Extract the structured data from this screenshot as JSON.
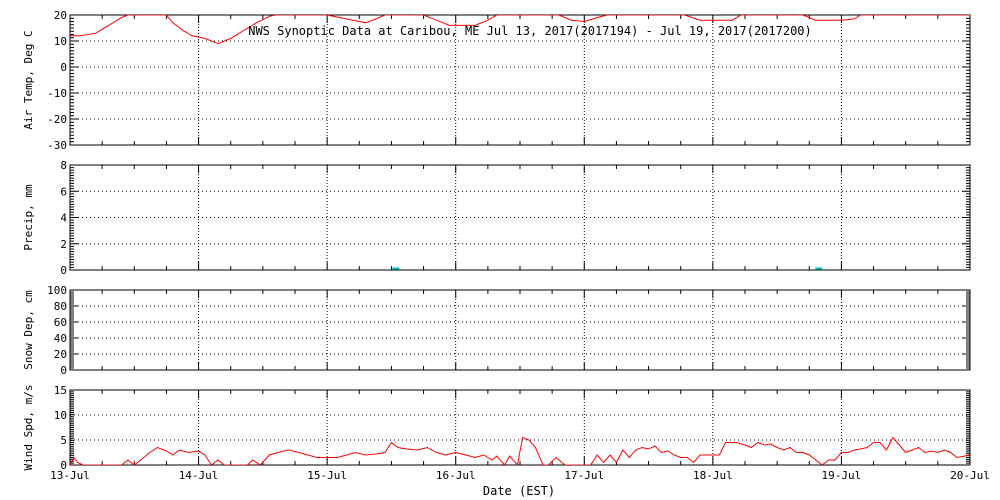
{
  "chart_data": {
    "title": "NWS Synoptic Data at Caribou, ME   Jul 13, 2017(2017194) - Jul 19, 2017(2017200)",
    "xlabel": "Date (EST)",
    "type": "line",
    "x_ticks": [
      "13-Jul",
      "14-Jul",
      "15-Jul",
      "16-Jul",
      "17-Jul",
      "18-Jul",
      "19-Jul",
      "20-Jul"
    ],
    "x_range": [
      0,
      7
    ],
    "grid": true,
    "colors": {
      "series": "#ff0000",
      "precip": "#00c8c8",
      "grid": "#000000"
    },
    "panels": [
      {
        "key": "air_temp",
        "type": "line",
        "ylabel": "Air Temp, Deg C",
        "ylim": [
          -30,
          20
        ],
        "y_ticks": [
          20,
          10,
          0,
          -10,
          -20,
          -30
        ],
        "series": [
          {
            "values": [
              [
                0,
                12
              ],
              [
                0.08,
                12
              ],
              [
                0.2,
                13
              ],
              [
                0.3,
                16
              ],
              [
                0.4,
                19
              ],
              [
                0.45,
                20
              ],
              [
                0.75,
                20
              ],
              [
                0.8,
                17
              ],
              [
                0.88,
                14
              ],
              [
                0.95,
                12
              ],
              [
                1.05,
                11
              ],
              [
                1.15,
                9
              ],
              [
                1.25,
                11
              ],
              [
                1.35,
                14
              ],
              [
                1.45,
                17
              ],
              [
                1.55,
                19.5
              ],
              [
                1.6,
                20
              ],
              [
                2.0,
                20
              ],
              [
                2.1,
                19
              ],
              [
                2.2,
                18
              ],
              [
                2.3,
                17
              ],
              [
                2.38,
                18.5
              ],
              [
                2.45,
                20
              ],
              [
                2.75,
                20
              ],
              [
                2.85,
                18
              ],
              [
                2.95,
                16
              ],
              [
                3.05,
                16
              ],
              [
                3.15,
                16
              ],
              [
                3.25,
                18
              ],
              [
                3.32,
                20
              ],
              [
                3.8,
                20
              ],
              [
                3.9,
                18
              ],
              [
                4.0,
                17.5
              ],
              [
                4.1,
                19
              ],
              [
                4.18,
                20
              ],
              [
                4.78,
                20
              ],
              [
                4.9,
                18
              ],
              [
                5.0,
                18
              ],
              [
                5.15,
                18
              ],
              [
                5.22,
                20
              ],
              [
                5.7,
                20
              ],
              [
                5.8,
                18
              ],
              [
                5.9,
                18
              ],
              [
                6.0,
                18
              ],
              [
                6.1,
                18.5
              ],
              [
                6.15,
                20
              ],
              [
                7,
                20
              ]
            ]
          }
        ]
      },
      {
        "key": "precip",
        "type": "bar",
        "ylabel": "Precip, mm",
        "ylim": [
          0,
          8
        ],
        "y_ticks": [
          8,
          6,
          4,
          2,
          0
        ],
        "series": [
          {
            "values": [
              [
                2.53,
                0.12
              ],
              [
                5.82,
                0.12
              ]
            ]
          }
        ]
      },
      {
        "key": "snow_depth",
        "type": "line",
        "ylabel": "Snow Dep, cm",
        "ylim": [
          0,
          100
        ],
        "y_ticks": [
          100,
          80,
          60,
          40,
          20,
          0
        ],
        "series": []
      },
      {
        "key": "wind_speed",
        "type": "line",
        "ylabel": "Wind Spd, m/s",
        "ylim": [
          0,
          15
        ],
        "y_ticks": [
          15,
          10,
          5,
          0
        ],
        "series": [
          {
            "values": [
              [
                0,
                0
              ],
              [
                0.03,
                1.5
              ],
              [
                0.06,
                0.5
              ],
              [
                0.1,
                0
              ],
              [
                0.4,
                0
              ],
              [
                0.45,
                1
              ],
              [
                0.5,
                0
              ],
              [
                0.55,
                1
              ],
              [
                0.62,
                2.5
              ],
              [
                0.68,
                3.5
              ],
              [
                0.75,
                2.8
              ],
              [
                0.8,
                2
              ],
              [
                0.85,
                3
              ],
              [
                0.92,
                2.5
              ],
              [
                1.0,
                2.8
              ],
              [
                1.05,
                2
              ],
              [
                1.1,
                0
              ],
              [
                1.15,
                1
              ],
              [
                1.2,
                0
              ],
              [
                1.38,
                0
              ],
              [
                1.42,
                1
              ],
              [
                1.48,
                0
              ],
              [
                1.55,
                2
              ],
              [
                1.62,
                2.5
              ],
              [
                1.7,
                3
              ],
              [
                1.78,
                2.5
              ],
              [
                1.85,
                2
              ],
              [
                1.92,
                1.5
              ],
              [
                2.0,
                1.5
              ],
              [
                2.08,
                1.5
              ],
              [
                2.15,
                2
              ],
              [
                2.22,
                2.5
              ],
              [
                2.3,
                2
              ],
              [
                2.38,
                2.2
              ],
              [
                2.45,
                2.5
              ],
              [
                2.5,
                4.5
              ],
              [
                2.55,
                3.5
              ],
              [
                2.62,
                3.2
              ],
              [
                2.7,
                3
              ],
              [
                2.78,
                3.5
              ],
              [
                2.85,
                2.5
              ],
              [
                2.92,
                2
              ],
              [
                3.0,
                2.5
              ],
              [
                3.08,
                2
              ],
              [
                3.15,
                1.5
              ],
              [
                3.22,
                2
              ],
              [
                3.28,
                1
              ],
              [
                3.32,
                1.8
              ],
              [
                3.38,
                0
              ],
              [
                3.42,
                1.8
              ],
              [
                3.48,
                0
              ],
              [
                3.52,
                5.5
              ],
              [
                3.57,
                5
              ],
              [
                3.62,
                3.5
              ],
              [
                3.68,
                0
              ],
              [
                3.72,
                0
              ],
              [
                3.78,
                1.5
              ],
              [
                3.85,
                0
              ],
              [
                4.05,
                0
              ],
              [
                4.1,
                2
              ],
              [
                4.15,
                0.5
              ],
              [
                4.2,
                2
              ],
              [
                4.25,
                0.5
              ],
              [
                4.3,
                3
              ],
              [
                4.35,
                1.5
              ],
              [
                4.4,
                3
              ],
              [
                4.45,
                3.5
              ],
              [
                4.5,
                3.2
              ],
              [
                4.55,
                3.8
              ],
              [
                4.6,
                2.5
              ],
              [
                4.65,
                2.8
              ],
              [
                4.7,
                2
              ],
              [
                4.75,
                1.5
              ],
              [
                4.8,
                1.5
              ],
              [
                4.85,
                0.5
              ],
              [
                4.9,
                2
              ],
              [
                4.95,
                2
              ],
              [
                5.05,
                2
              ],
              [
                5.1,
                4.5
              ],
              [
                5.18,
                4.5
              ],
              [
                5.25,
                4
              ],
              [
                5.3,
                3.5
              ],
              [
                5.35,
                4.5
              ],
              [
                5.4,
                4
              ],
              [
                5.45,
                4.2
              ],
              [
                5.5,
                3.5
              ],
              [
                5.55,
                3
              ],
              [
                5.6,
                3.5
              ],
              [
                5.65,
                2.5
              ],
              [
                5.7,
                2.5
              ],
              [
                5.75,
                2
              ],
              [
                5.8,
                1
              ],
              [
                5.85,
                0
              ],
              [
                5.9,
                1
              ],
              [
                5.95,
                1
              ],
              [
                6.0,
                2.5
              ],
              [
                6.05,
                2.5
              ],
              [
                6.1,
                3
              ],
              [
                6.15,
                3.2
              ],
              [
                6.2,
                3.5
              ],
              [
                6.25,
                4.5
              ],
              [
                6.3,
                4.5
              ],
              [
                6.35,
                3
              ],
              [
                6.4,
                5.5
              ],
              [
                6.45,
                4
              ],
              [
                6.5,
                2.5
              ],
              [
                6.55,
                3
              ],
              [
                6.6,
                3.5
              ],
              [
                6.65,
                2.5
              ],
              [
                6.7,
                2.8
              ],
              [
                6.75,
                2.5
              ],
              [
                6.8,
                3
              ],
              [
                6.85,
                2.5
              ],
              [
                6.9,
                1.5
              ],
              [
                7,
                2
              ]
            ]
          }
        ]
      }
    ]
  }
}
